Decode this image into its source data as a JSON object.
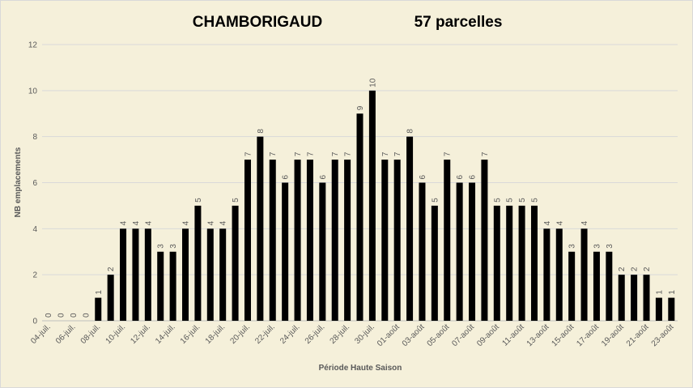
{
  "chart_data": {
    "type": "bar",
    "title": "CHAMBORIGAUD",
    "subtitle": "57 parcelles",
    "xlabel": "Période Haute Saison",
    "ylabel": "NB emplacements",
    "categories": [
      "04-juil.",
      null,
      "06-juil.",
      null,
      "08-juil.",
      null,
      "10-juil.",
      null,
      "12-juil.",
      null,
      "14-juil.",
      null,
      "16-juil.",
      null,
      "18-juil.",
      null,
      "20-juil.",
      null,
      "22-juil.",
      null,
      "24-juil.",
      null,
      "26-juil.",
      null,
      "28-juil.",
      null,
      "30-juil.",
      null,
      "01-août",
      null,
      "03-août",
      null,
      "05-août",
      null,
      "07-août",
      null,
      "09-août",
      null,
      "11-août",
      null,
      "13-août",
      null,
      "15-août",
      null,
      "17-août",
      null,
      "19-août",
      null,
      "21-août",
      null,
      "23-août"
    ],
    "values": [
      0,
      0,
      0,
      0,
      1,
      2,
      4,
      4,
      4,
      3,
      3,
      4,
      5,
      4,
      4,
      5,
      7,
      8,
      7,
      6,
      7,
      7,
      6,
      7,
      7,
      9,
      10,
      7,
      7,
      8,
      6,
      5,
      7,
      6,
      6,
      7,
      5,
      5,
      5,
      5,
      4,
      4,
      3,
      4,
      3,
      3,
      2,
      2,
      2,
      1,
      1
    ],
    "color": "#000000",
    "ylim": [
      0,
      12
    ],
    "yticks": [
      0,
      2,
      4,
      6,
      8,
      10,
      12
    ],
    "grid": true
  }
}
